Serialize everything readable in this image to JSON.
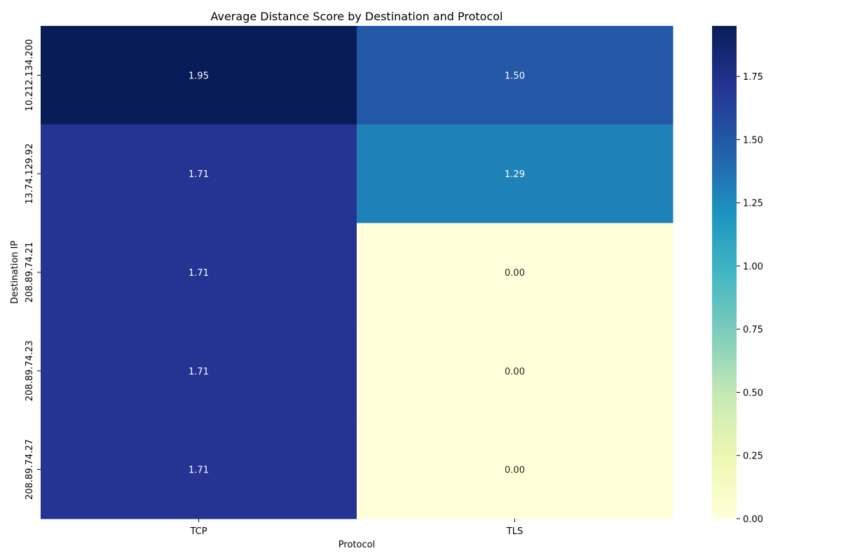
{
  "chart_data": {
    "type": "heatmap",
    "title": "Average Distance Score by Destination and Protocol",
    "xlabel": "Protocol",
    "ylabel": "Destination IP",
    "columns": [
      "TCP",
      "TLS"
    ],
    "rows": [
      "10.212.134.200",
      "13.74.129.92",
      "208.89.74.21",
      "208.89.74.23",
      "208.89.74.27"
    ],
    "values": [
      [
        1.95,
        1.5
      ],
      [
        1.71,
        1.29
      ],
      [
        1.71,
        0.0
      ],
      [
        1.71,
        0.0
      ],
      [
        1.71,
        0.0
      ]
    ],
    "value_labels": [
      [
        "1.95",
        "1.50"
      ],
      [
        "1.71",
        "1.29"
      ],
      [
        "1.71",
        "0.00"
      ],
      [
        "1.71",
        "0.00"
      ],
      [
        "1.71",
        "0.00"
      ]
    ],
    "colormap": "YlGnBu",
    "vmin": 0.0,
    "vmax": 1.95,
    "colorbar_ticks": [
      "0.00",
      "0.25",
      "0.50",
      "0.75",
      "1.00",
      "1.25",
      "1.50",
      "1.75"
    ],
    "colorbar_tick_values": [
      0.0,
      0.25,
      0.5,
      0.75,
      1.0,
      1.25,
      1.5,
      1.75
    ],
    "colors": {
      "cell_text_dark": "#ffffff",
      "cell_text_light": "#262626"
    }
  }
}
